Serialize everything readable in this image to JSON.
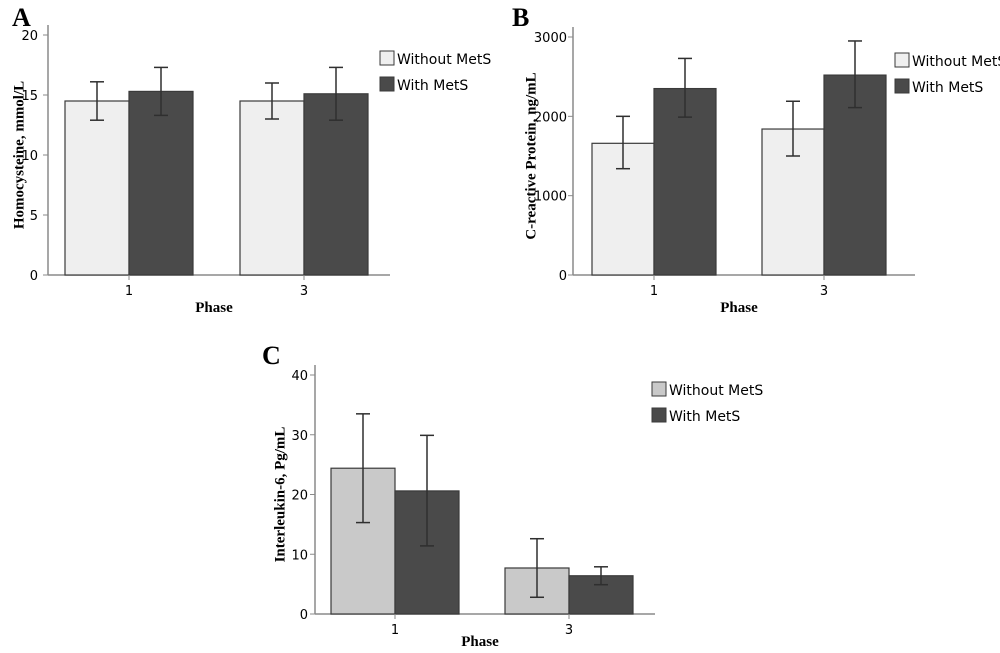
{
  "chart_data": [
    {
      "panel": "A",
      "type": "bar",
      "xlabel": "Phase",
      "ylabel": "Homocysteine, mmol/L",
      "categories": [
        "1",
        "3"
      ],
      "ylim": [
        0,
        20
      ],
      "yticks": [
        0,
        5,
        10,
        15,
        20
      ],
      "series": [
        {
          "name": "Without MetS",
          "color": "#efefef",
          "values": [
            14.5,
            14.5
          ],
          "error_low": [
            12.9,
            13.0
          ],
          "error_high": [
            16.1,
            16.0
          ]
        },
        {
          "name": "With MetS",
          "color": "#4a4a4a",
          "values": [
            15.3,
            15.1
          ],
          "error_low": [
            13.3,
            12.9
          ],
          "error_high": [
            17.3,
            17.3
          ]
        }
      ],
      "legend": "top-right"
    },
    {
      "panel": "B",
      "type": "bar",
      "xlabel": "Phase",
      "ylabel": "C-reactive Protein, ng/mL",
      "categories": [
        "1",
        "3"
      ],
      "ylim": [
        0,
        3000
      ],
      "yticks": [
        0,
        1000,
        2000,
        3000
      ],
      "series": [
        {
          "name": "Without MetS",
          "color": "#efefef",
          "values": [
            1660,
            1840
          ],
          "error_low": [
            1340,
            1500
          ],
          "error_high": [
            2000,
            2190
          ]
        },
        {
          "name": "With MetS",
          "color": "#4a4a4a",
          "values": [
            2350,
            2520
          ],
          "error_low": [
            1990,
            2110
          ],
          "error_high": [
            2730,
            2950
          ]
        }
      ],
      "legend": "top-right"
    },
    {
      "panel": "C",
      "type": "bar",
      "xlabel": "Phase",
      "ylabel": "Interleukin-6, Pg/mL",
      "categories": [
        "1",
        "3"
      ],
      "ylim": [
        0,
        40
      ],
      "yticks": [
        0,
        10,
        20,
        30,
        40
      ],
      "series": [
        {
          "name": "Without MetS",
          "color": "#c9c9c9",
          "values": [
            24.4,
            7.7
          ],
          "error_low": [
            15.3,
            2.8
          ],
          "error_high": [
            33.5,
            12.6
          ]
        },
        {
          "name": "With MetS",
          "color": "#4a4a4a",
          "values": [
            20.6,
            6.4
          ],
          "error_low": [
            11.4,
            4.9
          ],
          "error_high": [
            29.9,
            7.9
          ]
        }
      ],
      "legend": "top-right"
    }
  ]
}
